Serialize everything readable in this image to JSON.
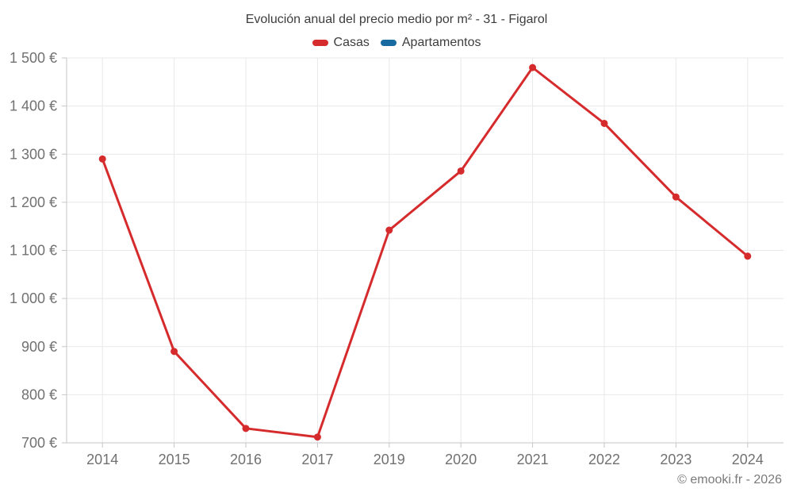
{
  "footer": {
    "copyright": "© emooki.fr - 2026"
  },
  "chart_data": {
    "type": "line",
    "title": "Evolución anual del precio medio por m² - 31 - Figarol",
    "xlabel": "",
    "ylabel": "",
    "categories": [
      "2014",
      "2015",
      "2016",
      "2017",
      "2019",
      "2020",
      "2021",
      "2022",
      "2023",
      "2024"
    ],
    "series": [
      {
        "name": "Casas",
        "color": "#d62b2d",
        "values": [
          1290,
          890,
          730,
          712,
          1142,
          1265,
          1480,
          1364,
          1211,
          1088
        ]
      },
      {
        "name": "Apartamentos",
        "color": "#176a9f",
        "values": []
      }
    ],
    "ylim": [
      700,
      1500
    ],
    "ytick_step": 100,
    "yticks": [
      "700 €",
      "800 €",
      "900 €",
      "1 000 €",
      "1 100 €",
      "1 200 €",
      "1 300 €",
      "1 400 €",
      "1 500 €"
    ],
    "grid": true,
    "legend_position": "top",
    "colors": {
      "gridline": "#e8e8e8",
      "axis": "#c6c6c6",
      "axis_text": "#717171",
      "title_text": "#3d3d3d",
      "copyright_text": "#7a7a7a"
    }
  }
}
